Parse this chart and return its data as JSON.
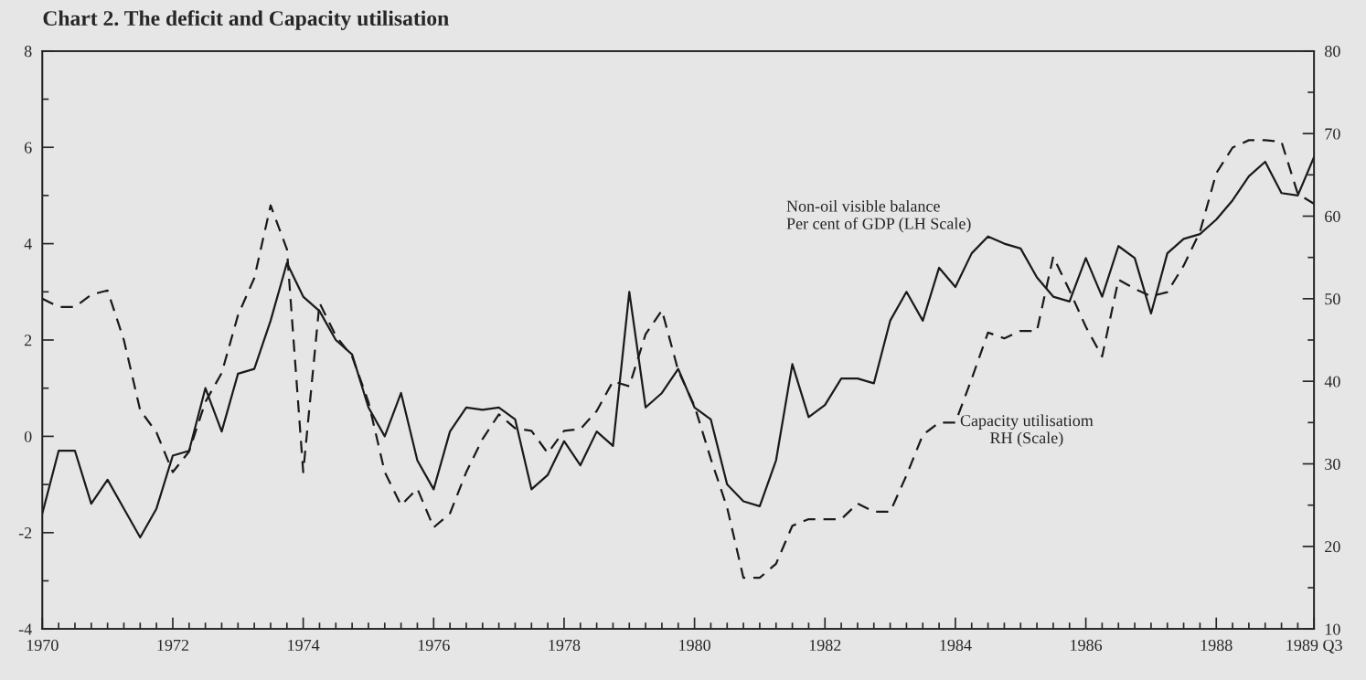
{
  "chart_data": {
    "type": "line",
    "title": "Chart 2. The deficit and Capacity utilisation",
    "x": [
      1970,
      1970.25,
      1970.5,
      1970.75,
      1971,
      1971.25,
      1971.5,
      1971.75,
      1972,
      1972.25,
      1972.5,
      1972.75,
      1973,
      1973.25,
      1973.5,
      1973.75,
      1974,
      1974.25,
      1974.5,
      1974.75,
      1975,
      1975.25,
      1975.5,
      1975.75,
      1976,
      1976.25,
      1976.5,
      1976.75,
      1977,
      1977.25,
      1977.5,
      1977.75,
      1978,
      1978.25,
      1978.5,
      1978.75,
      1979,
      1979.25,
      1979.5,
      1979.75,
      1980,
      1980.25,
      1980.5,
      1980.75,
      1981,
      1981.25,
      1981.5,
      1981.75,
      1982,
      1982.25,
      1982.5,
      1982.75,
      1983,
      1983.25,
      1983.5,
      1983.75,
      1984,
      1984.25,
      1984.5,
      1984.75,
      1985,
      1985.25,
      1985.5,
      1985.75,
      1986,
      1986.25,
      1986.5,
      1986.75,
      1987,
      1987.25,
      1987.5,
      1987.75,
      1988,
      1988.25,
      1988.5,
      1988.75,
      1989,
      1989.25,
      1989.5
    ],
    "series": [
      {
        "color": "#1a1a1a",
        "line_style": "solid",
        "values": [
          -1.6,
          -0.3,
          -0.3,
          -1.4,
          -0.9,
          -1.5,
          -2.1,
          -1.5,
          -0.4,
          -0.3,
          1.0,
          0.1,
          1.3,
          1.4,
          2.4,
          3.6,
          2.9,
          2.6,
          2.0,
          1.7,
          0.6,
          0.0,
          0.9,
          -0.5,
          -1.1,
          0.1,
          0.6,
          0.55,
          0.6,
          0.35,
          -1.1,
          -0.8,
          -0.1,
          -0.6,
          0.1,
          -0.2,
          3.0,
          0.6,
          0.9,
          1.4,
          0.6,
          0.35,
          -1.0,
          -1.35,
          -1.45,
          -0.5,
          1.5,
          0.4,
          0.65,
          1.2,
          1.2,
          1.1,
          2.4,
          3.0,
          2.4,
          3.5,
          3.1,
          3.8,
          4.15,
          4.0,
          3.9,
          3.3,
          2.9,
          2.8,
          3.7,
          2.9,
          3.95,
          3.7,
          2.55,
          3.8,
          4.1,
          4.2,
          4.5,
          4.9,
          5.4,
          5.7,
          5.05,
          5.0,
          5.8
        ]
      },
      {
        "color": "#1a1a1a",
        "line_style": "dashed",
        "axis": "y2",
        "values": [
          50,
          49,
          49,
          50.5,
          51,
          45,
          36.5,
          33.8,
          29,
          31.5,
          37.5,
          41,
          48,
          52.5,
          61.3,
          56,
          29,
          49.5,
          45.5,
          43,
          37.5,
          29,
          25,
          27,
          22.3,
          24,
          29,
          33,
          36,
          34.3,
          34,
          31.3,
          34,
          34.2,
          36.4,
          40,
          39.4,
          45.7,
          48.6,
          41.3,
          37,
          30.6,
          24.7,
          16.2,
          16.2,
          17.9,
          22.5,
          23.3,
          23.3,
          23.3,
          25.2,
          24.2,
          24.2,
          28.6,
          33.5,
          35,
          35,
          40.3,
          45.9,
          45.2,
          46.1,
          46.1,
          55.1,
          51,
          46.6,
          43,
          52.3,
          51.2,
          50.3,
          50.8,
          54,
          58.1,
          65.2,
          68.3,
          69.2,
          69.2,
          69,
          62.7,
          61.5
        ]
      }
    ],
    "xlim": [
      1970,
      1989.5
    ],
    "xticks": [
      1970,
      {
        "value": 1970.25,
        "label": null
      },
      {
        "value": 1970.5,
        "label": null
      },
      {
        "value": 1970.75,
        "label": null
      },
      {
        "value": 1971,
        "label": null
      },
      {
        "value": 1971.25,
        "label": null
      },
      {
        "value": 1971.5,
        "label": null
      },
      {
        "value": 1971.75,
        "label": null
      },
      1972,
      {
        "value": 1972.25,
        "label": null
      },
      {
        "value": 1972.5,
        "label": null
      },
      {
        "value": 1972.75,
        "label": null
      },
      {
        "value": 1973,
        "label": null
      },
      {
        "value": 1973.25,
        "label": null
      },
      {
        "value": 1973.5,
        "label": null
      },
      {
        "value": 1973.75,
        "label": null
      },
      1974,
      {
        "value": 1974.25,
        "label": null
      },
      {
        "value": 1974.5,
        "label": null
      },
      {
        "value": 1974.75,
        "label": null
      },
      {
        "value": 1975,
        "label": null
      },
      {
        "value": 1975.25,
        "label": null
      },
      {
        "value": 1975.5,
        "label": null
      },
      {
        "value": 1975.75,
        "label": null
      },
      1976,
      {
        "value": 1976.25,
        "label": null
      },
      {
        "value": 1976.5,
        "label": null
      },
      {
        "value": 1976.75,
        "label": null
      },
      {
        "value": 1977,
        "label": null
      },
      {
        "value": 1977.25,
        "label": null
      },
      {
        "value": 1977.5,
        "label": null
      },
      {
        "value": 1977.75,
        "label": null
      },
      1978,
      {
        "value": 1978.25,
        "label": null
      },
      {
        "value": 1978.5,
        "label": null
      },
      {
        "value": 1978.75,
        "label": null
      },
      {
        "value": 1979,
        "label": null
      },
      {
        "value": 1979.25,
        "label": null
      },
      {
        "value": 1979.5,
        "label": null
      },
      {
        "value": 1979.75,
        "label": null
      },
      1980,
      {
        "value": 1980.25,
        "label": null
      },
      {
        "value": 1980.5,
        "label": null
      },
      {
        "value": 1980.75,
        "label": null
      },
      {
        "value": 1981,
        "label": null
      },
      {
        "value": 1981.25,
        "label": null
      },
      {
        "value": 1981.5,
        "label": null
      },
      {
        "value": 1981.75,
        "label": null
      },
      1982,
      {
        "value": 1982.25,
        "label": null
      },
      {
        "value": 1982.5,
        "label": null
      },
      {
        "value": 1982.75,
        "label": null
      },
      {
        "value": 1983,
        "label": null
      },
      {
        "value": 1983.25,
        "label": null
      },
      {
        "value": 1983.5,
        "label": null
      },
      {
        "value": 1983.75,
        "label": null
      },
      1984,
      {
        "value": 1984.25,
        "label": null
      },
      {
        "value": 1984.5,
        "label": null
      },
      {
        "value": 1984.75,
        "label": null
      },
      {
        "value": 1985,
        "label": null
      },
      {
        "value": 1985.25,
        "label": null
      },
      {
        "value": 1985.5,
        "label": null
      },
      {
        "value": 1985.75,
        "label": null
      },
      1986,
      {
        "value": 1986.25,
        "label": null
      },
      {
        "value": 1986.5,
        "label": null
      },
      {
        "value": 1986.75,
        "label": null
      },
      {
        "value": 1987,
        "label": null
      },
      {
        "value": 1987.25,
        "label": null
      },
      {
        "value": 1987.5,
        "label": null
      },
      {
        "value": 1987.75,
        "label": null
      },
      1988,
      {
        "value": 1988.25,
        "label": null
      },
      {
        "value": 1988.5,
        "label": null
      },
      {
        "value": 1988.75,
        "label": null
      },
      {
        "value": 1989,
        "label": null
      },
      {
        "value": 1989.25,
        "label": null
      },
      {
        "value": 1989.5,
        "label": "1989 Q3"
      }
    ],
    "ylim": [
      -4,
      8
    ],
    "yticks": [
      -4,
      {
        "value": -3,
        "label": null
      },
      -2,
      {
        "value": -1,
        "label": null
      },
      0,
      {
        "value": 1,
        "label": null
      },
      2,
      {
        "value": 3,
        "label": null
      },
      4,
      {
        "value": 5,
        "label": null
      },
      6,
      {
        "value": 7,
        "label": null
      },
      8
    ],
    "y2lim": [
      10,
      80
    ],
    "y2ticks": [
      10,
      {
        "value": 15,
        "label": null
      },
      20,
      {
        "value": 25,
        "label": null
      },
      30,
      {
        "value": 35,
        "label": null
      },
      40,
      {
        "value": 45,
        "label": null
      },
      50,
      {
        "value": 55,
        "label": null
      },
      60,
      {
        "value": 65,
        "label": null
      },
      70,
      {
        "value": 75,
        "label": null
      },
      80
    ],
    "annotations": [
      "Non-oil visible balance\nPer cent of GDP (LH Scale)",
      "Capacity utilisatiom\nRH (Scale)"
    ],
    "grid": false,
    "legend": false
  }
}
